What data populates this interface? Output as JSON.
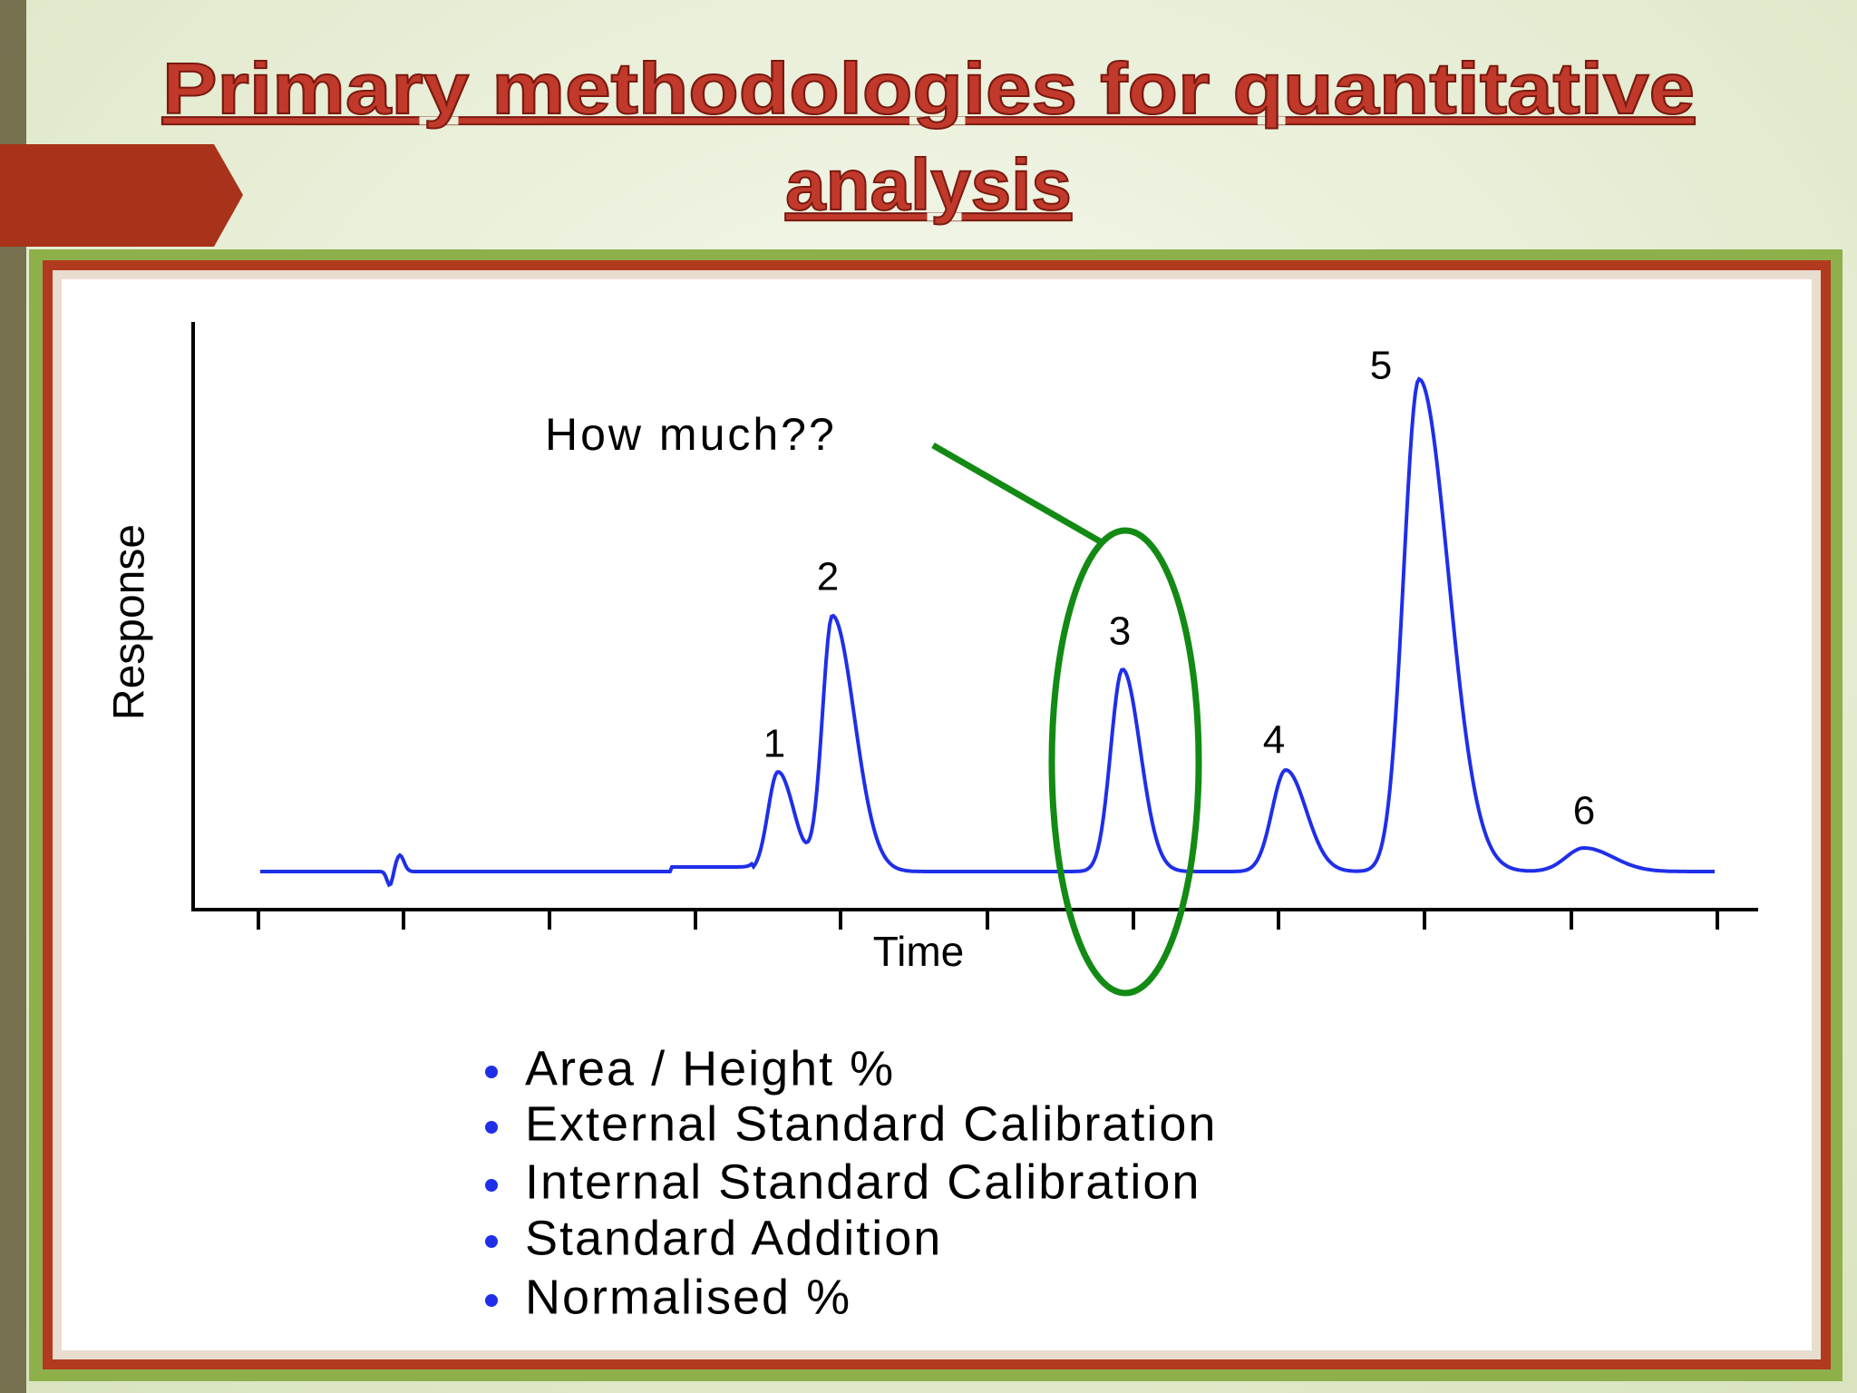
{
  "slide": {
    "title_lines": [
      "Primary methodologies for quantitative",
      "analysis"
    ],
    "figure": {
      "y_axis_label": "Response",
      "x_axis_label": "Time",
      "annotation": "How much??",
      "peak_labels": [
        "1",
        "2",
        "3",
        "4",
        "5",
        "6"
      ]
    },
    "methods": [
      "Area / Height %",
      "External Standard Calibration",
      "Internal Standard Calibration",
      "Standard Addition",
      "Normalised %"
    ]
  }
}
